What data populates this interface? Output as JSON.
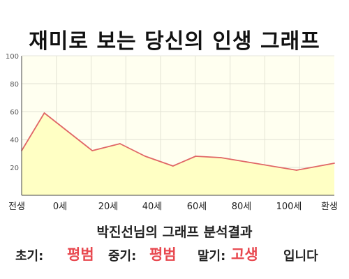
{
  "title": "재미로 보는 당신의 인생 그래프",
  "chart_data": {
    "type": "area",
    "x": [
      -9,
      0,
      19,
      30,
      40,
      51,
      60,
      70,
      80,
      100,
      115
    ],
    "values": [
      32,
      59,
      32,
      37,
      28,
      21,
      28,
      27,
      24,
      18,
      23
    ],
    "ylim": [
      0,
      100
    ],
    "yticks": [
      20,
      40,
      60,
      80,
      100
    ],
    "xtick_labels": [
      "전생",
      "0세",
      "20세",
      "40세",
      "60세",
      "80세",
      "100세",
      "환생"
    ],
    "grid": true,
    "colors": {
      "line": "#e06666",
      "fill": "#ffffc4",
      "plot_bg": "#fffff0",
      "grid": "#e2e2d4"
    }
  },
  "subtitle": "박진선님의 그래프 분석결과",
  "result": {
    "early_label": "초기:",
    "early_value": "평범",
    "middle_label": "중기:",
    "middle_value": "평범",
    "late_label": "말기:",
    "late_value": "고생",
    "suffix": "입니다"
  }
}
